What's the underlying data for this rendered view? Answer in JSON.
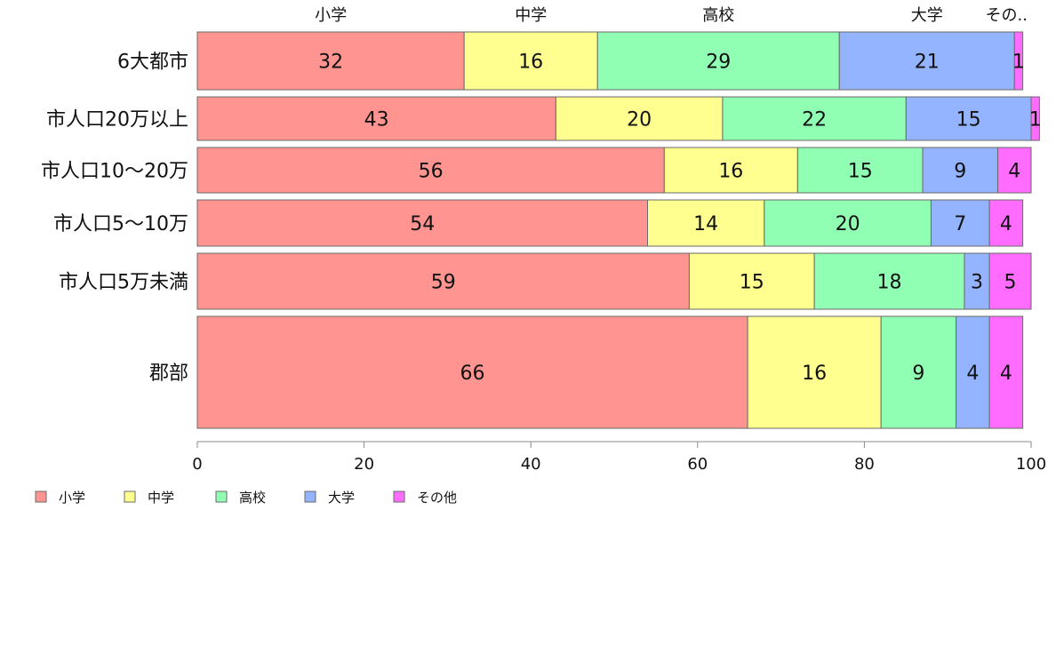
{
  "chart_data": {
    "type": "bar",
    "orientation": "horizontal",
    "stacked": true,
    "categories": [
      "6大都市",
      "市人口20万以上",
      "市人口10〜20万",
      "市人口5〜10万",
      "市人口5万未満",
      "郡部"
    ],
    "series": [
      {
        "name": "小学",
        "color": "#ff9490",
        "values": [
          32,
          43,
          56,
          54,
          59,
          66
        ]
      },
      {
        "name": "中学",
        "color": "#ffff90",
        "values": [
          16,
          20,
          16,
          14,
          15,
          16
        ]
      },
      {
        "name": "高校",
        "color": "#90ffb4",
        "values": [
          29,
          22,
          15,
          20,
          18,
          9
        ]
      },
      {
        "name": "大学",
        "color": "#94b4ff",
        "values": [
          21,
          15,
          9,
          7,
          3,
          4
        ]
      },
      {
        "name": "その他",
        "color": "#ff6cff",
        "values": [
          1,
          1,
          4,
          4,
          5,
          4
        ]
      }
    ],
    "top_labels": [
      "小学",
      "中学",
      "高校",
      "大学",
      "その.."
    ],
    "xlim": [
      0,
      100
    ],
    "x_ticks": [
      "0",
      "20",
      "40",
      "60",
      "80",
      "100"
    ],
    "grid": false,
    "legend": "bottom-left"
  }
}
